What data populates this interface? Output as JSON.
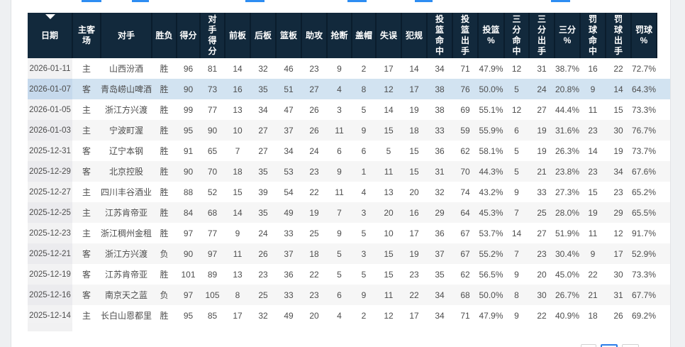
{
  "colors": {
    "header_bg": "#12293c",
    "highlight_row": "#d2e3f1",
    "zebra_row": "#f6f6f6",
    "accent_blue": "#2e8df2"
  },
  "table": {
    "sort_caret_icon": "caret-down",
    "highlight_row_index": 1,
    "columns": [
      {
        "key": "date",
        "label": "日期"
      },
      {
        "key": "home_away",
        "label": "主客\n场"
      },
      {
        "key": "opponent",
        "label": "对手"
      },
      {
        "key": "result",
        "label": "胜负"
      },
      {
        "key": "points",
        "label": "得分"
      },
      {
        "key": "opp_points",
        "label": "对\n手\n得\n分"
      },
      {
        "key": "off_rebounds",
        "label": "前板"
      },
      {
        "key": "def_rebounds",
        "label": "后板"
      },
      {
        "key": "rebounds",
        "label": "篮板"
      },
      {
        "key": "assists",
        "label": "助攻"
      },
      {
        "key": "steals",
        "label": "抢断"
      },
      {
        "key": "blocks",
        "label": "盖帽"
      },
      {
        "key": "turnovers",
        "label": "失误"
      },
      {
        "key": "fouls",
        "label": "犯规"
      },
      {
        "key": "fg_made",
        "label": "投\n篮\n命\n中"
      },
      {
        "key": "fg_attempts",
        "label": "投\n篮\n出\n手"
      },
      {
        "key": "fg_pct",
        "label": "投篮\n%"
      },
      {
        "key": "three_made",
        "label": "三\n分\n命\n中"
      },
      {
        "key": "three_attempts",
        "label": "三\n分\n出\n手"
      },
      {
        "key": "three_pct",
        "label": "三分\n%"
      },
      {
        "key": "ft_made",
        "label": "罚\n球\n命\n中"
      },
      {
        "key": "ft_attempts",
        "label": "罚\n球\n出\n手"
      },
      {
        "key": "ft_pct",
        "label": "罚球\n%"
      }
    ],
    "rows": [
      [
        "2026-01-11",
        "主",
        "山西汾酒",
        "胜",
        "96",
        "81",
        "14",
        "32",
        "46",
        "23",
        "9",
        "2",
        "17",
        "14",
        "34",
        "71",
        "47.9%",
        "12",
        "31",
        "38.7%",
        "16",
        "22",
        "72.7%"
      ],
      [
        "2026-01-07",
        "客",
        "青岛崂山啤酒",
        "胜",
        "90",
        "73",
        "16",
        "35",
        "51",
        "27",
        "4",
        "8",
        "12",
        "17",
        "38",
        "76",
        "50.0%",
        "5",
        "24",
        "20.8%",
        "9",
        "14",
        "64.3%"
      ],
      [
        "2026-01-05",
        "主",
        "浙江方兴渡",
        "胜",
        "99",
        "77",
        "13",
        "34",
        "47",
        "26",
        "3",
        "5",
        "14",
        "19",
        "38",
        "69",
        "55.1%",
        "12",
        "27",
        "44.4%",
        "11",
        "15",
        "73.3%"
      ],
      [
        "2026-01-03",
        "主",
        "宁波町渥",
        "胜",
        "95",
        "90",
        "10",
        "27",
        "37",
        "26",
        "11",
        "9",
        "15",
        "18",
        "33",
        "59",
        "55.9%",
        "6",
        "19",
        "31.6%",
        "23",
        "30",
        "76.7%"
      ],
      [
        "2025-12-31",
        "客",
        "辽宁本钢",
        "胜",
        "91",
        "65",
        "7",
        "27",
        "34",
        "24",
        "6",
        "6",
        "5",
        "15",
        "36",
        "62",
        "58.1%",
        "5",
        "19",
        "26.3%",
        "14",
        "19",
        "73.7%"
      ],
      [
        "2025-12-29",
        "客",
        "北京控股",
        "胜",
        "90",
        "70",
        "18",
        "35",
        "53",
        "23",
        "9",
        "1",
        "11",
        "15",
        "31",
        "70",
        "44.3%",
        "5",
        "21",
        "23.8%",
        "23",
        "34",
        "67.6%"
      ],
      [
        "2025-12-27",
        "主",
        "四川丰谷酒业",
        "胜",
        "88",
        "52",
        "15",
        "39",
        "54",
        "22",
        "11",
        "4",
        "13",
        "20",
        "32",
        "74",
        "43.2%",
        "9",
        "33",
        "27.3%",
        "15",
        "23",
        "65.2%"
      ],
      [
        "2025-12-25",
        "主",
        "江苏肯帝亚",
        "胜",
        "84",
        "68",
        "14",
        "35",
        "49",
        "19",
        "7",
        "3",
        "20",
        "16",
        "29",
        "64",
        "45.3%",
        "7",
        "25",
        "28.0%",
        "19",
        "29",
        "65.5%"
      ],
      [
        "2025-12-23",
        "主",
        "浙江稠州金租",
        "胜",
        "97",
        "77",
        "9",
        "24",
        "33",
        "25",
        "9",
        "5",
        "10",
        "17",
        "36",
        "67",
        "53.7%",
        "14",
        "27",
        "51.9%",
        "11",
        "12",
        "91.7%"
      ],
      [
        "2025-12-21",
        "客",
        "浙江方兴渡",
        "负",
        "90",
        "97",
        "11",
        "26",
        "37",
        "18",
        "5",
        "3",
        "15",
        "19",
        "37",
        "67",
        "55.2%",
        "7",
        "23",
        "30.4%",
        "9",
        "17",
        "52.9%"
      ],
      [
        "2025-12-19",
        "客",
        "江苏肯帝亚",
        "胜",
        "101",
        "89",
        "13",
        "23",
        "36",
        "22",
        "5",
        "5",
        "15",
        "23",
        "35",
        "62",
        "56.5%",
        "9",
        "20",
        "45.0%",
        "22",
        "30",
        "73.3%"
      ],
      [
        "2025-12-16",
        "客",
        "南京天之蓝",
        "负",
        "97",
        "105",
        "8",
        "25",
        "33",
        "23",
        "6",
        "9",
        "11",
        "22",
        "34",
        "68",
        "50.0%",
        "8",
        "30",
        "26.7%",
        "21",
        "31",
        "67.7%"
      ],
      [
        "2025-12-14",
        "主",
        "长白山恩都里",
        "胜",
        "95",
        "85",
        "17",
        "32",
        "49",
        "20",
        "4",
        "2",
        "12",
        "17",
        "34",
        "71",
        "47.9%",
        "9",
        "22",
        "40.9%",
        "18",
        "26",
        "69.2%"
      ]
    ]
  },
  "pagination": {
    "buttons": [
      {
        "active": false
      },
      {
        "active": true
      },
      {
        "active": false
      }
    ]
  }
}
